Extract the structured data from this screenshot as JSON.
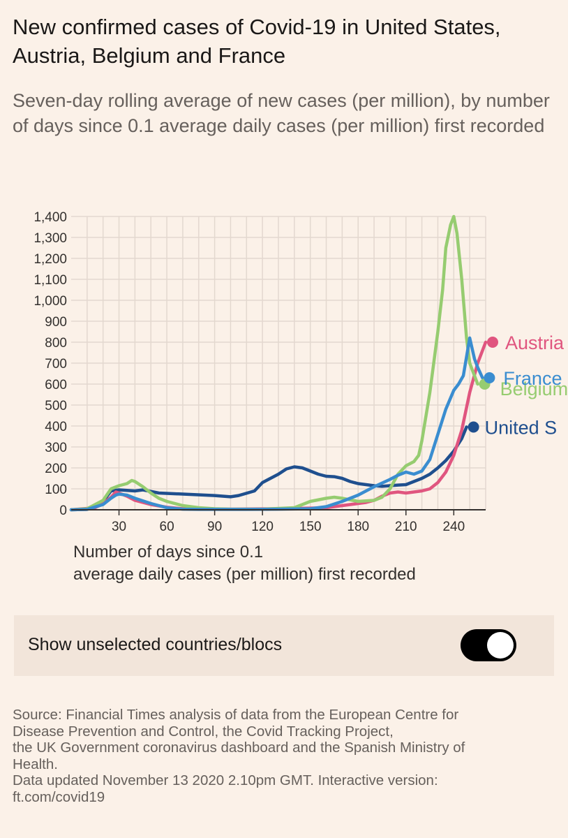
{
  "header": {
    "title": "New confirmed cases of Covid-19 in United States, Austria, Belgium and France",
    "subtitle": "Seven-day rolling average of new cases (per million), by number of days since 0.1 average daily cases (per million) first recorded"
  },
  "chart_data": {
    "type": "line",
    "xlabel_lines": [
      "Number of days since 0.1",
      "average daily cases (per million) first recorded"
    ],
    "ylabel": "",
    "xlim": [
      0,
      260
    ],
    "ylim": [
      0,
      1400
    ],
    "xticks": [
      30,
      60,
      90,
      120,
      150,
      180,
      210,
      240
    ],
    "yticks": [
      0,
      100,
      200,
      300,
      400,
      500,
      600,
      700,
      800,
      900,
      1000,
      1100,
      1200,
      1300,
      1400
    ],
    "grid": true,
    "series": [
      {
        "name": "United States",
        "label": "United S",
        "color": "#1f4f8e",
        "x": [
          0,
          10,
          20,
          25,
          30,
          40,
          45,
          55,
          70,
          90,
          100,
          105,
          115,
          120,
          125,
          130,
          135,
          140,
          145,
          150,
          155,
          160,
          165,
          170,
          175,
          180,
          185,
          190,
          195,
          200,
          205,
          210,
          215,
          220,
          225,
          230,
          235,
          240,
          245,
          248
        ],
        "y": [
          0,
          2,
          40,
          90,
          95,
          90,
          95,
          80,
          75,
          68,
          62,
          68,
          90,
          130,
          150,
          170,
          195,
          205,
          200,
          185,
          170,
          160,
          158,
          150,
          135,
          125,
          120,
          115,
          112,
          115,
          118,
          120,
          135,
          150,
          170,
          200,
          235,
          280,
          340,
          395
        ]
      },
      {
        "name": "Austria",
        "label": "Austria",
        "color": "#e0557f",
        "x": [
          0,
          15,
          20,
          25,
          28,
          30,
          35,
          40,
          50,
          60,
          70,
          100,
          130,
          150,
          160,
          165,
          170,
          180,
          185,
          190,
          195,
          200,
          205,
          210,
          215,
          220,
          225,
          230,
          235,
          240,
          245,
          250,
          255,
          260
        ],
        "y": [
          0,
          10,
          30,
          60,
          85,
          80,
          65,
          45,
          25,
          12,
          5,
          3,
          5,
          8,
          10,
          15,
          20,
          30,
          35,
          45,
          65,
          80,
          85,
          80,
          85,
          90,
          100,
          130,
          180,
          260,
          380,
          560,
          700,
          800
        ]
      },
      {
        "name": "Belgium",
        "label": "Belgium",
        "color": "#96cc70",
        "x": [
          0,
          10,
          20,
          25,
          30,
          35,
          38,
          40,
          45,
          50,
          55,
          60,
          70,
          80,
          90,
          100,
          120,
          140,
          145,
          150,
          160,
          165,
          170,
          180,
          190,
          195,
          200,
          205,
          210,
          215,
          218,
          220,
          225,
          230,
          233,
          235,
          238,
          240,
          242,
          245,
          248,
          250,
          255
        ],
        "y": [
          0,
          5,
          45,
          100,
          115,
          125,
          140,
          135,
          110,
          80,
          55,
          40,
          20,
          10,
          5,
          3,
          3,
          10,
          25,
          40,
          55,
          60,
          55,
          40,
          45,
          60,
          100,
          170,
          210,
          230,
          260,
          330,
          560,
          850,
          1050,
          1250,
          1360,
          1400,
          1320,
          1100,
          820,
          700,
          600
        ]
      },
      {
        "name": "France",
        "label": "France",
        "color": "#3a8dd0",
        "x": [
          0,
          10,
          20,
          25,
          28,
          30,
          35,
          40,
          50,
          60,
          70,
          80,
          90,
          110,
          130,
          150,
          160,
          170,
          180,
          190,
          200,
          205,
          210,
          215,
          220,
          225,
          230,
          235,
          240,
          243,
          246,
          248,
          250,
          253,
          255,
          258
        ],
        "y": [
          0,
          2,
          25,
          55,
          70,
          75,
          70,
          55,
          30,
          10,
          3,
          2,
          2,
          2,
          3,
          5,
          15,
          40,
          70,
          110,
          145,
          165,
          180,
          170,
          185,
          240,
          360,
          480,
          570,
          600,
          640,
          730,
          820,
          720,
          680,
          630
        ]
      }
    ],
    "end_labels": [
      "Austria",
      "France",
      "Belgium",
      "United S"
    ]
  },
  "toggle": {
    "label": "Show unselected countries/blocs",
    "checked": true
  },
  "source": {
    "lines": [
      "Source: Financial Times analysis of data from the European Centre for",
      "Disease Prevention and Control, the Covid Tracking Project,",
      "the UK Government coronavirus dashboard and the Spanish Ministry of",
      "Health.",
      "Data updated November 13 2020 2.10pm GMT. Interactive version:",
      "ft.com/covid19"
    ]
  }
}
